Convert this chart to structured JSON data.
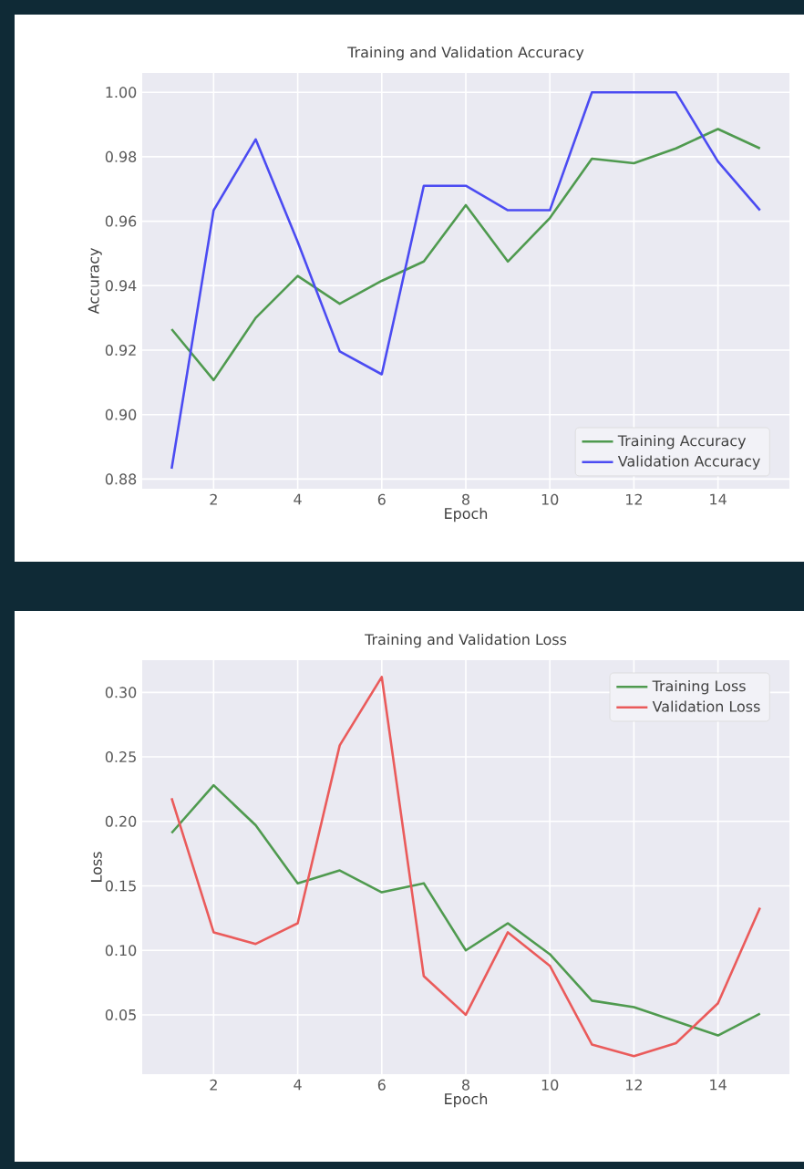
{
  "chart_data": [
    {
      "type": "line",
      "title": "Training and Validation Accuracy",
      "xlabel": "Epoch",
      "ylabel": "Accuracy",
      "x": [
        1,
        2,
        3,
        4,
        5,
        6,
        7,
        8,
        9,
        10,
        11,
        12,
        13,
        14,
        15
      ],
      "series": [
        {
          "name": "Training Accuracy",
          "color": "#4f9a4f",
          "values": [
            0.9265,
            0.9107,
            0.93,
            0.943,
            0.9344,
            0.9415,
            0.9475,
            0.965,
            0.9475,
            0.961,
            0.9794,
            0.978,
            0.9826,
            0.9886,
            0.9826
          ]
        },
        {
          "name": "Validation Accuracy",
          "color": "#4b4bf2",
          "values": [
            0.8832,
            0.9634,
            0.9854,
            0.9536,
            0.9196,
            0.9125,
            0.971,
            0.971,
            0.9634,
            0.9634,
            1.0,
            1.0,
            1.0,
            0.9785,
            0.9634
          ]
        }
      ],
      "xlim": [
        0.3,
        15.7
      ],
      "ylim": [
        0.877,
        1.006
      ],
      "xticks": [
        2,
        4,
        6,
        8,
        10,
        12,
        14
      ],
      "yticks": [
        0.88,
        {
          "value": 0.9,
          "label": "0.90"
        },
        0.92,
        0.94,
        0.96,
        0.98,
        {
          "value": 1.0,
          "label": "1.00"
        }
      ],
      "grid": true,
      "legend": "bottom right"
    },
    {
      "type": "line",
      "title": "Training and Validation Loss",
      "xlabel": "Epoch",
      "ylabel": "Loss",
      "x": [
        1,
        2,
        3,
        4,
        5,
        6,
        7,
        8,
        9,
        10,
        11,
        12,
        13,
        14,
        15
      ],
      "series": [
        {
          "name": "Training Loss",
          "color": "#4f9a4f",
          "values": [
            0.191,
            0.228,
            0.197,
            0.152,
            0.162,
            0.145,
            0.152,
            0.1,
            0.121,
            0.097,
            0.061,
            0.056,
            0.045,
            0.034,
            0.051
          ]
        },
        {
          "name": "Validation Loss",
          "color": "#ea5b5b",
          "values": [
            0.218,
            0.114,
            0.105,
            0.121,
            0.259,
            0.312,
            0.08,
            0.05,
            0.114,
            0.088,
            0.027,
            0.018,
            0.028,
            0.059,
            0.133
          ]
        }
      ],
      "xlim": [
        0.3,
        15.7
      ],
      "ylim": [
        0.004,
        0.325
      ],
      "xticks": [
        2,
        4,
        6,
        8,
        10,
        12,
        14
      ],
      "yticks": [
        0.05,
        {
          "value": 0.1,
          "label": "0.10"
        },
        0.15,
        {
          "value": 0.2,
          "label": "0.20"
        },
        0.25,
        {
          "value": 0.3,
          "label": "0.30"
        }
      ],
      "grid": true,
      "legend": "top right"
    }
  ]
}
